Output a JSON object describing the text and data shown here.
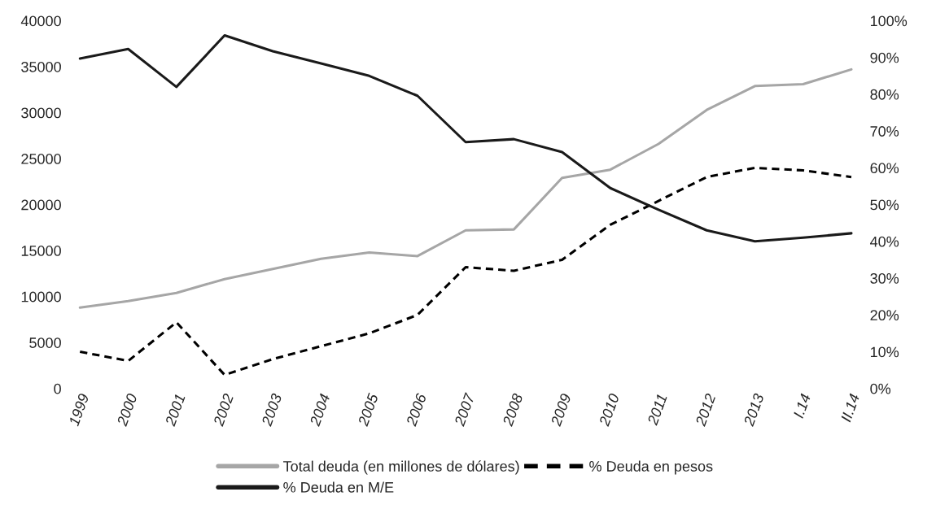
{
  "chart_data": {
    "type": "line",
    "categories": [
      "1999",
      "2000",
      "2001",
      "2002",
      "2003",
      "2004",
      "2005",
      "2006",
      "2007",
      "2008",
      "2009",
      "2010",
      "2011",
      "2012",
      "2013",
      "I.14",
      "II.14"
    ],
    "series": [
      {
        "name": "Total deuda (en millones de dólares)",
        "color": "#a6a6a6",
        "line_style": "solid",
        "values": [
          8800,
          9500,
          10400,
          11900,
          13000,
          14100,
          14800,
          14400,
          17200,
          17300,
          22900,
          23800,
          26600,
          30300,
          32900,
          33100,
          34700
        ]
      },
      {
        "name": "% Deuda en pesos",
        "color": "#000000",
        "line_style": "dashed",
        "axis": "y2",
        "values": [
          10,
          7.5,
          18,
          3.7,
          8,
          11.5,
          15,
          20,
          33,
          32,
          35,
          44.5,
          51,
          57.5,
          60,
          59.3,
          57.5
        ]
      },
      {
        "name": "% Deuda en M/E",
        "color": "#1a1a1a",
        "line_style": "solid",
        "axis": "y2",
        "values": [
          89.7,
          92.3,
          82,
          96,
          91.7,
          88.4,
          85,
          79.6,
          67,
          67.8,
          64.3,
          54.5,
          48.6,
          43,
          40,
          41,
          42.2
        ]
      }
    ],
    "ylim": [
      0,
      40000
    ],
    "yticks": [
      0,
      5000,
      10000,
      15000,
      20000,
      25000,
      30000,
      35000,
      40000
    ],
    "y2lim": [
      0,
      100
    ],
    "y2ticks": [
      {
        "value": 0,
        "label": "0%"
      },
      {
        "value": 10,
        "label": "10%"
      },
      {
        "value": 20,
        "label": "20%"
      },
      {
        "value": 30,
        "label": "30%"
      },
      {
        "value": 40,
        "label": "40%"
      },
      {
        "value": 50,
        "label": "50%"
      },
      {
        "value": 60,
        "label": "60%"
      },
      {
        "value": 70,
        "label": "70%"
      },
      {
        "value": 80,
        "label": "80%"
      },
      {
        "value": 90,
        "label": "90%"
      },
      {
        "value": 100,
        "label": "100%"
      }
    ],
    "grid": false,
    "legend": "bottom",
    "marker": "none"
  }
}
